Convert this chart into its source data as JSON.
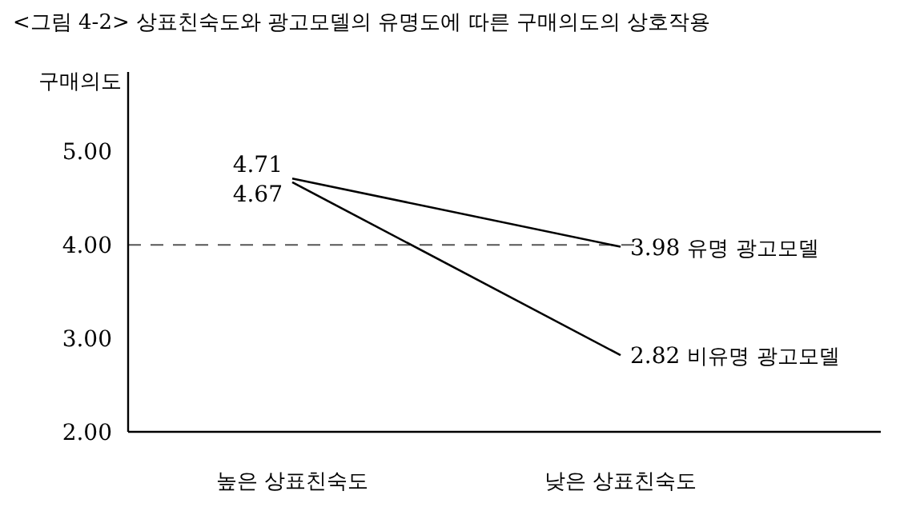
{
  "chart_data": {
    "type": "line",
    "title": "<그림 4-2> 상표친숙도와 광고모델의 유명도에 따른 구매의도의 상호작용",
    "ylabel": "구매의도",
    "categories": [
      "높은 상표친숙도",
      "낮은 상표친숙도"
    ],
    "series": [
      {
        "name": "유명 광고모델",
        "color": "#000000",
        "values": [
          4.71,
          3.98
        ],
        "value_labels": [
          "4.71",
          "3.98"
        ]
      },
      {
        "name": "비유명 광고모델",
        "color": "#000000",
        "values": [
          4.67,
          2.82
        ],
        "value_labels": [
          "4.67",
          "2.82"
        ]
      }
    ],
    "ylim": [
      2,
      5.85
    ],
    "yticks": [
      {
        "value": 2,
        "label": "2.00"
      },
      {
        "value": 3,
        "label": "3.00"
      },
      {
        "value": 4,
        "label": "4.00"
      },
      {
        "value": 5,
        "label": "5.00"
      }
    ],
    "ref_lines": [
      {
        "axis": "y",
        "value": 4,
        "color": "#555555",
        "line_style": "dashed"
      }
    ],
    "grid": false,
    "legend": false,
    "marker": "none",
    "line_style": "solid"
  }
}
